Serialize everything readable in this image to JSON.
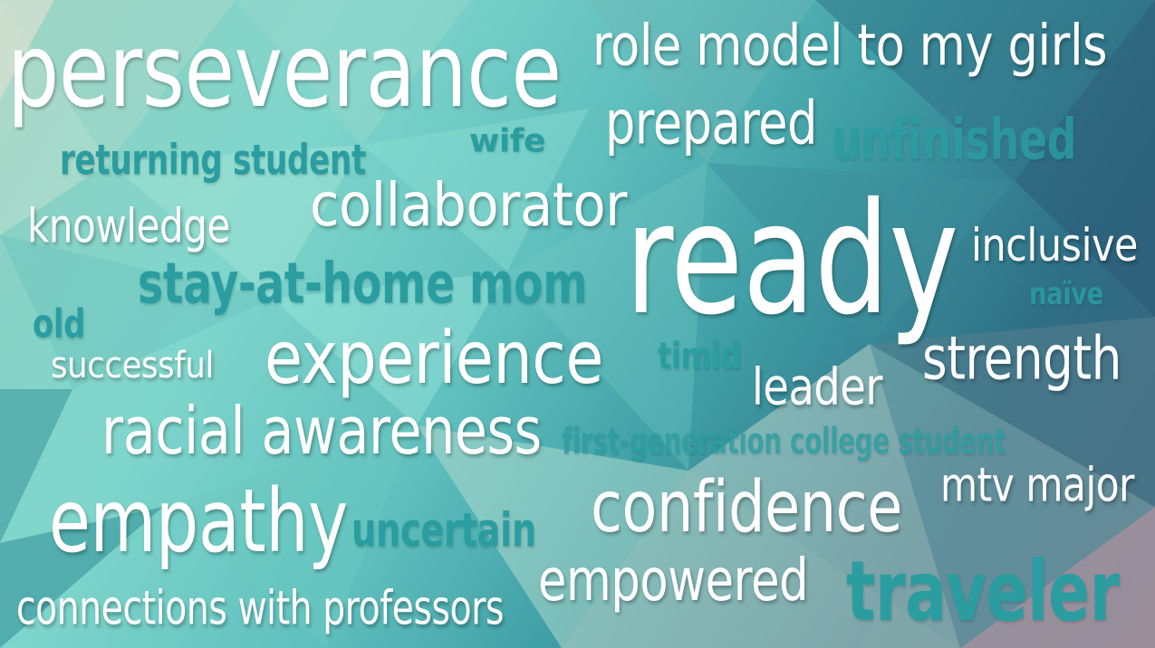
{
  "colors": {
    "white_word": "#ffffff",
    "teal_word": "#2a9da0"
  },
  "words": {
    "perseverance": "perseverance",
    "role_model": "role model to my girls",
    "prepared": "prepared",
    "unfinished": "unfinished",
    "wife": "wife",
    "returning_student": "returning student",
    "collaborator": "collaborator",
    "knowledge": "knowledge",
    "ready": "ready",
    "inclusive": "inclusive",
    "naive": "naïve",
    "stay_at_home_mom": "stay-at-home mom",
    "old": "old",
    "successful": "successful",
    "experience": "experience",
    "timid": "timid",
    "leader": "leader",
    "strength": "strength",
    "racial_awareness": "racial awareness",
    "first_generation": "first-generation college student",
    "mtv_major": "mtv major",
    "empathy": "empathy",
    "uncertain": "uncertain",
    "confidence": "confidence",
    "empowered": "empowered",
    "traveler": "traveler",
    "connections": "connections with professors"
  }
}
